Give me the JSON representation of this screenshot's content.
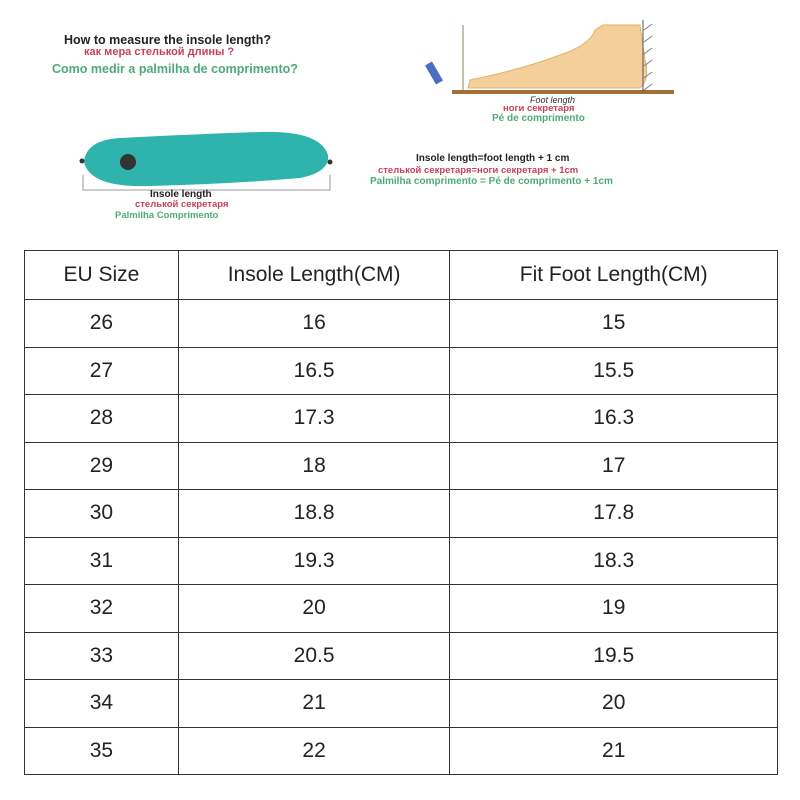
{
  "instructions": {
    "question_en": "How to measure the insole length?",
    "question_ru": "как мера  стелькой  длины ?",
    "question_pt": "Como medir a palmilha de comprimento?",
    "foot_length_en": "Foot length",
    "foot_length_ru": "ноги  секретаря",
    "foot_length_pt": "Pé de comprimento",
    "formula_en": "Insole length=foot length + 1 cm",
    "formula_ru": "стелькой  секретаря=ноги  секретаря + 1cm",
    "formula_pt": "Palmilha comprimento = Pé de comprimento + 1cm",
    "insole_length_en": "Insole length",
    "insole_length_ru": "стелькой  секретаря",
    "insole_length_pt": "Palmilha Comprimento"
  },
  "colors": {
    "insole": "#2fb3ad",
    "foot": "#f5cf9a",
    "red_text": "#c8405a",
    "green_text": "#4daa7a"
  },
  "table": {
    "headers": [
      "EU Size",
      "Insole Length(CM)",
      "Fit Foot Length(CM)"
    ],
    "rows": [
      [
        "26",
        "16",
        "15"
      ],
      [
        "27",
        "16.5",
        "15.5"
      ],
      [
        "28",
        "17.3",
        "16.3"
      ],
      [
        "29",
        "18",
        "17"
      ],
      [
        "30",
        "18.8",
        "17.8"
      ],
      [
        "31",
        "19.3",
        "18.3"
      ],
      [
        "32",
        "20",
        "19"
      ],
      [
        "33",
        "20.5",
        "19.5"
      ],
      [
        "34",
        "21",
        "20"
      ],
      [
        "35",
        "22",
        "21"
      ]
    ]
  }
}
